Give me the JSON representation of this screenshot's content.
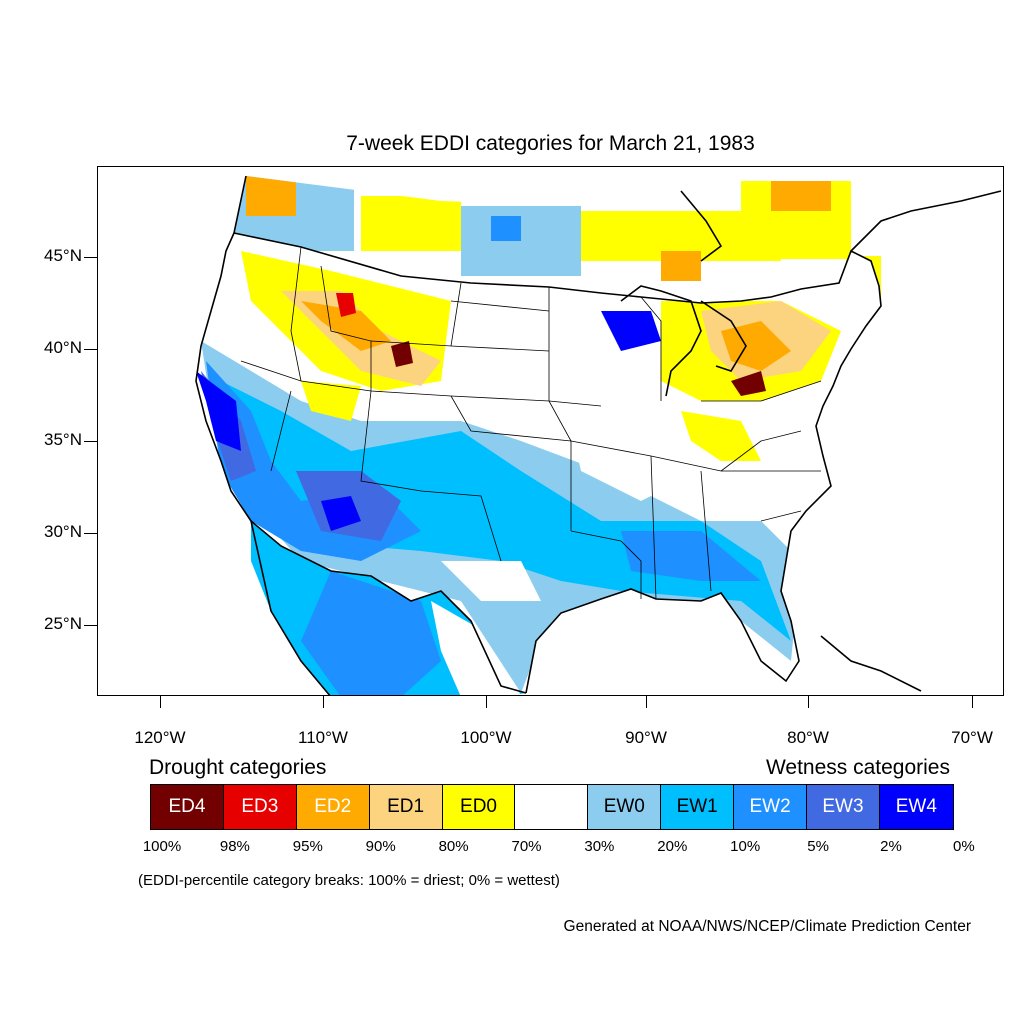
{
  "title": "7-week EDDI categories for March 21, 1983",
  "lat_labels": [
    "45°N",
    "40°N",
    "35°N",
    "30°N",
    "25°N"
  ],
  "lon_labels": [
    "120°W",
    "110°W",
    "100°W",
    "90°W",
    "80°W",
    "70°W"
  ],
  "legend": {
    "drought_title": "Drought categories",
    "wetness_title": "Wetness categories",
    "categories": [
      {
        "label": "ED4",
        "color": "#730000",
        "text_color": "#ffffff"
      },
      {
        "label": "ED3",
        "color": "#e60000",
        "text_color": "#ffffff"
      },
      {
        "label": "ED2",
        "color": "#ffaa00",
        "text_color": "#ffffff"
      },
      {
        "label": "ED1",
        "color": "#fcd37f",
        "text_color": "#000000"
      },
      {
        "label": "ED0",
        "color": "#ffff00",
        "text_color": "#000000"
      },
      {
        "label": "",
        "color": "#ffffff",
        "text_color": "#000000"
      },
      {
        "label": "EW0",
        "color": "#8ccdef",
        "text_color": "#000000"
      },
      {
        "label": "EW1",
        "color": "#00bfff",
        "text_color": "#000000"
      },
      {
        "label": "EW2",
        "color": "#1e90ff",
        "text_color": "#ffffff"
      },
      {
        "label": "EW3",
        "color": "#4169e1",
        "text_color": "#ffffff"
      },
      {
        "label": "EW4",
        "color": "#0000ff",
        "text_color": "#ffffff"
      }
    ],
    "percent_breaks": [
      "100%",
      "98%",
      "95%",
      "90%",
      "80%",
      "70%",
      "30%",
      "20%",
      "10%",
      "5%",
      "2%",
      "0%"
    ]
  },
  "note": "(EDDI-percentile category breaks: 100% = driest; 0% = wettest)",
  "credit": "Generated at NOAA/NWS/NCEP/Climate Prediction Center"
}
